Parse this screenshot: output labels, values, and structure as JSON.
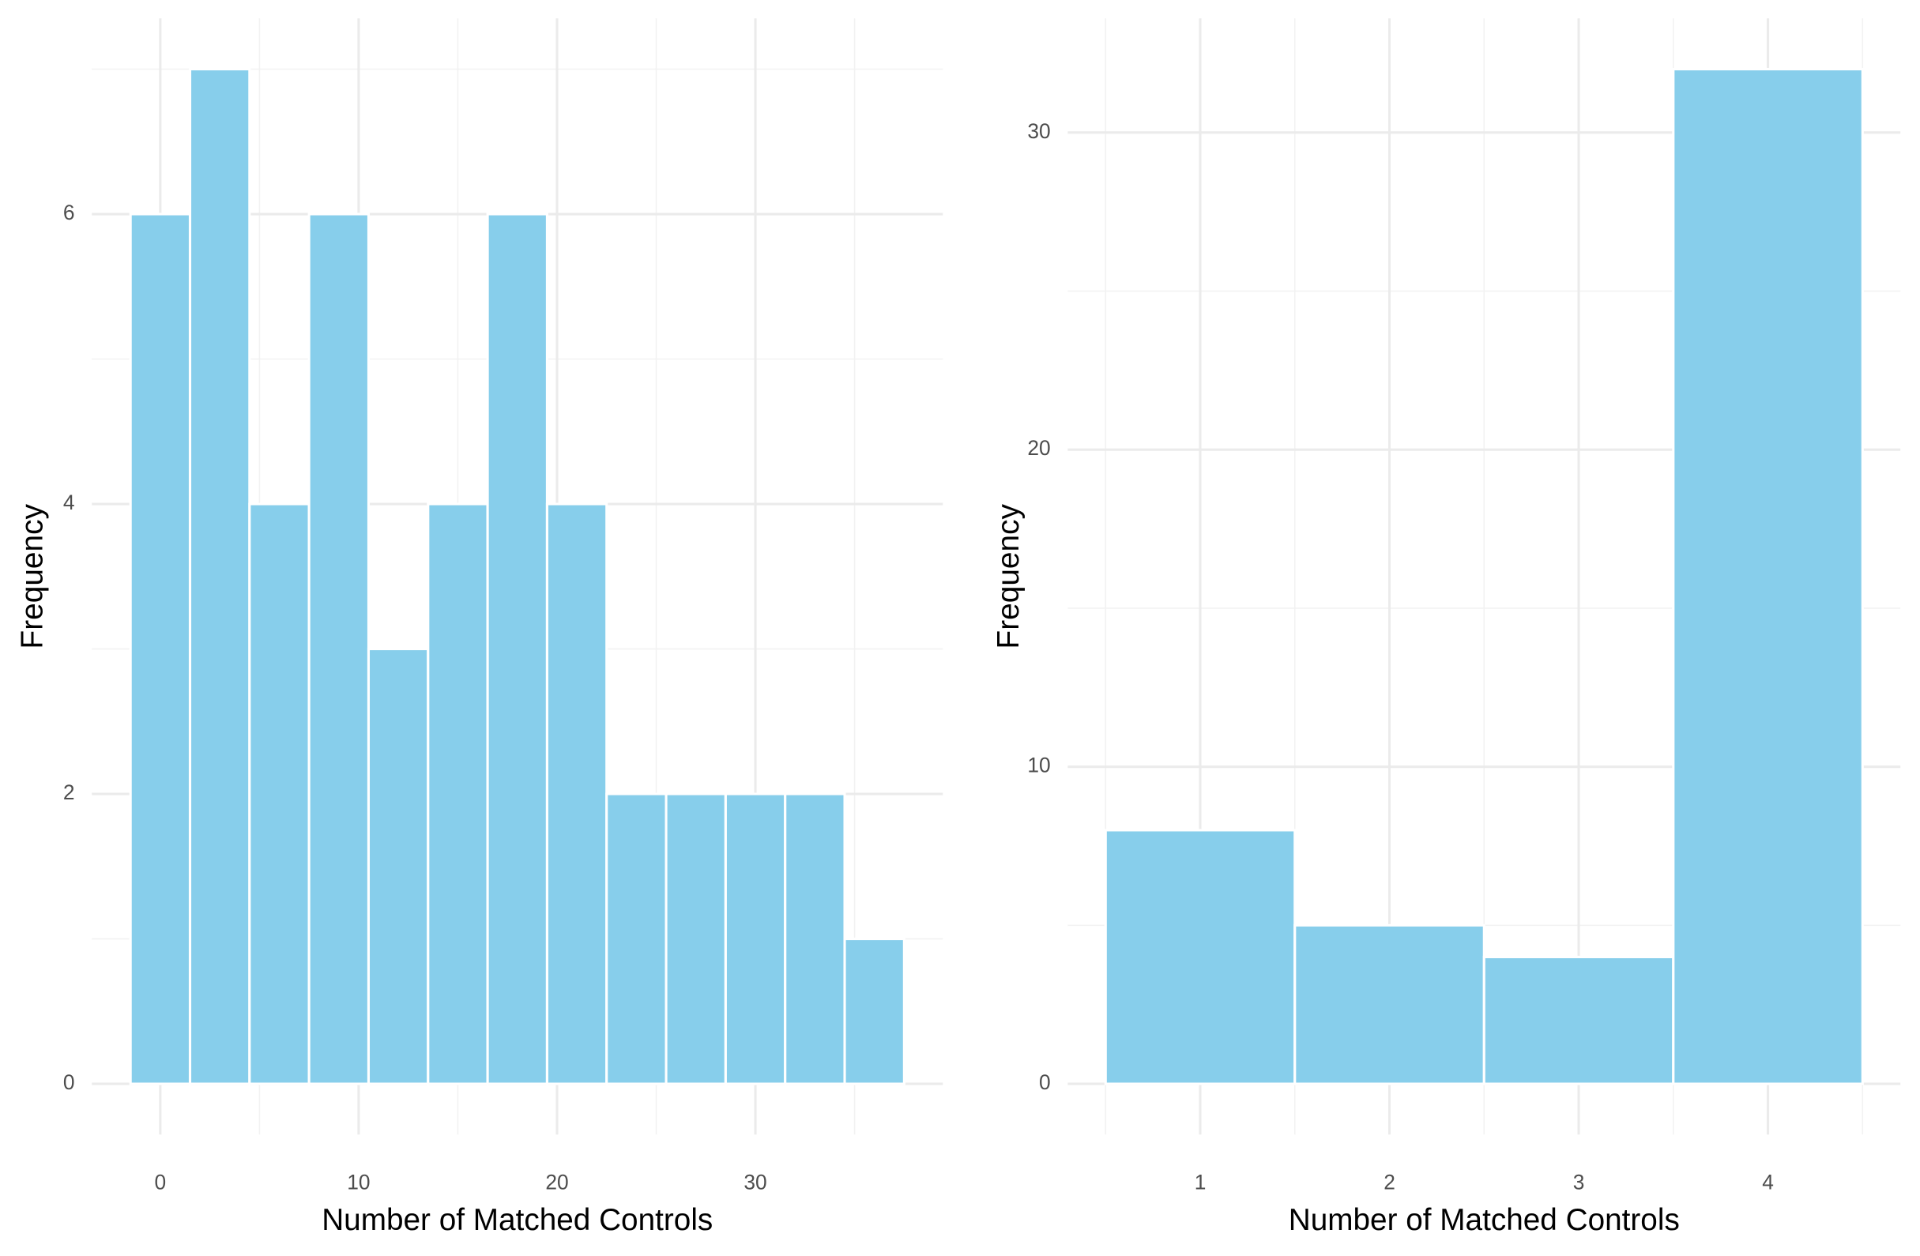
{
  "chart_data": [
    {
      "type": "histogram",
      "xlabel": "Number of Matched Controls",
      "ylabel": "Frequency",
      "bins": [
        -1.5,
        1.5,
        4.5,
        7.5,
        10.5,
        13.5,
        16.5,
        19.5,
        22.5,
        25.5,
        28.5,
        31.5,
        34.5,
        37.5
      ],
      "values": [
        6,
        7,
        4,
        6,
        3,
        4,
        6,
        4,
        2,
        2,
        2,
        2,
        1
      ],
      "color": "#87ceeb",
      "grid": true,
      "xlim": [
        -3.45,
        39.45
      ],
      "ylim": [
        -0.35,
        7.35
      ],
      "xticks": [
        0,
        10,
        20,
        30
      ],
      "yticks": [
        0,
        2,
        4,
        6
      ],
      "minor_xticks": [
        5,
        15,
        25,
        35
      ],
      "minor_yticks": [
        1,
        3,
        5,
        7
      ]
    },
    {
      "type": "histogram",
      "xlabel": "Number of Matched Controls",
      "ylabel": "Frequency",
      "bins": [
        0.5,
        1.5,
        2.5,
        3.5,
        4.5
      ],
      "values": [
        8,
        5,
        4,
        32
      ],
      "color": "#87ceeb",
      "grid": true,
      "xlim": [
        0.3,
        4.7
      ],
      "ylim": [
        -1.6,
        33.6
      ],
      "xticks": [
        1,
        2,
        3,
        4
      ],
      "yticks": [
        0,
        10,
        20,
        30
      ],
      "minor_xticks": [
        0.5,
        1.5,
        2.5,
        3.5,
        4.5
      ],
      "minor_yticks": [
        5,
        15,
        25
      ]
    }
  ]
}
